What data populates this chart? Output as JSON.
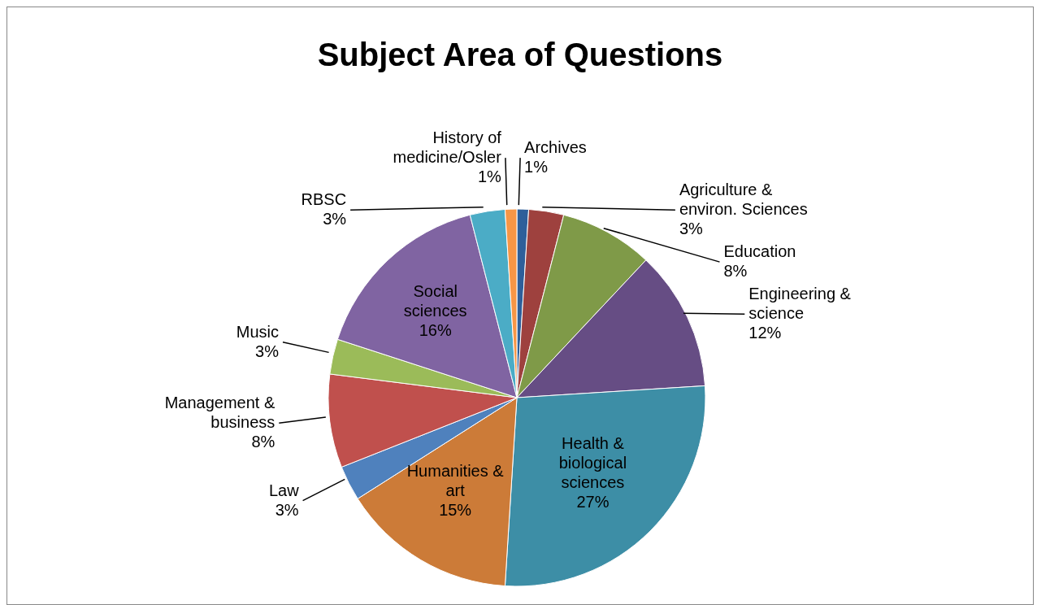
{
  "chart_data": {
    "type": "pie",
    "title": "Subject Area of Questions",
    "categories": [
      "Archives",
      "Agriculture & environ. Sciences",
      "Education",
      "Engineering & science",
      "Health & biological sciences",
      "Humanities & art",
      "Law",
      "Management & business",
      "Music",
      "Social sciences",
      "RBSC",
      "History of medicine/Osler"
    ],
    "values": [
      1,
      3,
      8,
      12,
      27,
      15,
      3,
      8,
      3,
      16,
      3,
      1
    ],
    "colors": [
      "#2e5f9a",
      "#9e413e",
      "#7f9a48",
      "#664d84",
      "#3d8ea6",
      "#cc7b38",
      "#4f81bd",
      "#c0504d",
      "#9bbb59",
      "#8064a2",
      "#4bacc6",
      "#f79646"
    ],
    "value_labels": [
      "1%",
      "3%",
      "8%",
      "12%",
      "27%",
      "15%",
      "3%",
      "8%",
      "3%",
      "16%",
      "3%",
      "1%"
    ]
  }
}
